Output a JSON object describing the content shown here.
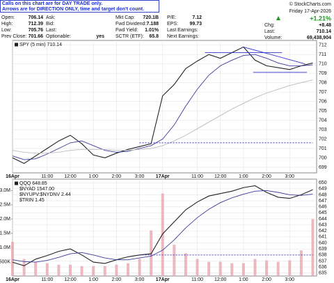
{
  "header": {
    "note": [
      "Calls on this chart are for DAY TRADE only.",
      "Arrows are for DIRECTION ONLY, time and target don't count."
    ],
    "credit": "© StockCharts.com",
    "date": "Friday 17-Apr-2026",
    "change_pct": "+1.21%",
    "columns": [
      [
        {
          "label": "Open:",
          "value": 706.14
        },
        {
          "label": "High:",
          "value": 712.39
        },
        {
          "label": "Low:",
          "value": 705.76
        },
        {
          "label": "Prev Close:",
          "value": 701.66
        }
      ],
      [
        {
          "label": "Ask:"
        },
        {
          "label": "Bid:"
        },
        {
          "label": "Last:"
        },
        {
          "label": "Optionable:",
          "value": "yes"
        }
      ],
      [
        {
          "label": "Mkt Cap:",
          "value": "720.1B"
        },
        {
          "label": "Fwd Dividend:",
          "value": 7.188
        },
        {
          "label": "Fwd Yield:",
          "value": "1.01%"
        },
        {
          "label": "SCTR (ETF):",
          "value": 65.8
        }
      ],
      [
        {
          "label": "P/E:",
          "value": 7.12
        },
        {
          "label": "EPS:",
          "value": 99.73
        },
        {
          "label": "Last Earnings:"
        },
        {
          "label": "Next Earnings:"
        }
      ],
      [
        {
          "label": "Chg:",
          "value": "+8.48"
        },
        {
          "label": "Last:",
          "value": 710.14
        },
        {
          "label": "Volume:",
          "value": "69,438,904"
        }
      ]
    ]
  },
  "chart_data": [
    {
      "type": "line",
      "x": [
        0,
        6,
        12,
        18,
        24,
        30,
        36,
        42,
        48,
        54,
        60,
        66,
        72,
        78,
        84,
        90,
        96,
        102,
        108,
        114,
        120,
        126,
        132,
        138,
        144,
        150,
        156
      ],
      "xlim": [
        0,
        158
      ],
      "xticks": [
        {
          "value": 0,
          "label": "16Apr"
        },
        {
          "value": 18,
          "label": "11:00"
        },
        {
          "value": 30,
          "label": "12:00"
        },
        {
          "value": 42,
          "label": "1:00"
        },
        {
          "value": 54,
          "label": "2:00"
        },
        {
          "value": 66,
          "label": "3:00"
        },
        {
          "value": 78,
          "label": "17Apr"
        },
        {
          "value": 96,
          "label": "11:00"
        },
        {
          "value": 108,
          "label": "12:00"
        },
        {
          "value": 120,
          "label": "1:00"
        },
        {
          "value": 132,
          "label": "2:00"
        },
        {
          "value": 144,
          "label": "3:00"
        }
      ],
      "ylim": [
        698.4,
        712.5
      ],
      "yticks": [
        699,
        700,
        701,
        702,
        703,
        704,
        705,
        706,
        707,
        708,
        709,
        710,
        711,
        712
      ],
      "grid": true,
      "series": [
        {
          "name": "SPY (5 min) 710.14",
          "color": "#222222",
          "values": [
            700.0,
            699.4,
            700.2,
            701.0,
            701.8,
            702.4,
            701.5,
            700.3,
            700.0,
            700.5,
            700.9,
            701.2,
            701.5,
            706.6,
            707.8,
            709.5,
            710.3,
            711.0,
            710.6,
            711.2,
            711.8,
            710.4,
            709.8,
            709.6,
            709.4,
            709.8,
            710.1
          ]
        },
        {
          "color": "#3a3a9a",
          "values": [
            700.2,
            699.8,
            699.9,
            700.4,
            701.0,
            701.6,
            701.8,
            701.3,
            700.8,
            700.6,
            700.7,
            701.0,
            701.3,
            702.0,
            703.5,
            705.5,
            707.3,
            708.8,
            709.8,
            710.4,
            710.9,
            711.0,
            710.6,
            710.1,
            709.8,
            709.8,
            709.9
          ]
        },
        {
          "color": "#bbbbbb",
          "values": [
            700.8,
            700.6,
            700.5,
            700.5,
            700.6,
            700.8,
            700.9,
            700.9,
            700.9,
            700.8,
            700.8,
            700.9,
            701.0,
            701.3,
            701.8,
            702.4,
            703.1,
            703.8,
            704.5,
            705.2,
            705.8,
            706.4,
            706.9,
            707.3,
            707.7,
            708.0,
            708.3
          ]
        }
      ],
      "trendlines": [
        {
          "x": [
            66,
            156
          ],
          "y": [
            701.6,
            701.6
          ],
          "color": "#3333cc",
          "dash": true
        },
        {
          "x": [
            100,
            140
          ],
          "y": [
            711.2,
            711.2
          ],
          "color": "#3333cc"
        },
        {
          "x": [
            125,
            153
          ],
          "y": [
            709.1,
            709.1
          ],
          "color": "#3333cc"
        },
        {
          "x": [
            120,
            152
          ],
          "y": [
            711.8,
            710.0
          ],
          "color": "#3333cc"
        }
      ]
    },
    {
      "type": "line",
      "x": [
        0,
        6,
        12,
        18,
        24,
        30,
        36,
        42,
        48,
        54,
        60,
        66,
        72,
        78,
        84,
        90,
        96,
        102,
        108,
        114,
        120,
        126,
        132,
        138,
        144,
        150,
        156
      ],
      "xlim": [
        0,
        158
      ],
      "xticks": [
        {
          "value": 0,
          "label": "16Apr"
        },
        {
          "value": 18,
          "label": "11:00"
        },
        {
          "value": 30,
          "label": "12:00"
        },
        {
          "value": 42,
          "label": "1:00"
        },
        {
          "value": 54,
          "label": "2:00"
        },
        {
          "value": 66,
          "label": "3:00"
        },
        {
          "value": 78,
          "label": "17Apr"
        },
        {
          "value": 96,
          "label": "11:00"
        },
        {
          "value": 108,
          "label": "12:00"
        },
        {
          "value": 120,
          "label": "1:00"
        },
        {
          "value": 132,
          "label": "2:00"
        },
        {
          "value": 144,
          "label": "3:00"
        }
      ],
      "ylim": [
        634.5,
        650.6
      ],
      "yticks": [
        635,
        636,
        637,
        638,
        639,
        640,
        641,
        642,
        643,
        644,
        645,
        646,
        647,
        648,
        649,
        650
      ],
      "y2lim": [
        0,
        3400000
      ],
      "y2ticks": [
        {
          "value": 500000,
          "label": "500K"
        },
        {
          "value": 1000000,
          "label": "1.0M"
        },
        {
          "value": 1500000,
          "label": "1.5M"
        },
        {
          "value": 2000000,
          "label": "2.0M"
        },
        {
          "value": 2500000,
          "label": "2.5M"
        },
        {
          "value": 3000000,
          "label": "3.0M"
        }
      ],
      "grid": true,
      "indicator_labels": [
        "$NYAD 1547.00",
        "$NYUPV:$NYDNV 2.44",
        "$TRIN 1.45"
      ],
      "series": [
        {
          "name": "QQQ 648.85",
          "color": "#222222",
          "values": [
            636.8,
            636.2,
            637.3,
            637.9,
            638.6,
            639.0,
            638.0,
            636.8,
            636.6,
            637.2,
            637.7,
            638.0,
            638.2,
            641.5,
            643.5,
            645.5,
            646.8,
            647.8,
            648.2,
            648.6,
            649.2,
            649.5,
            648.4,
            647.6,
            647.4,
            648.0,
            648.85
          ]
        },
        {
          "color": "#3a3a9a",
          "values": [
            637.2,
            636.9,
            636.8,
            637.1,
            637.6,
            638.2,
            638.4,
            638.0,
            637.5,
            637.2,
            637.2,
            637.5,
            637.8,
            638.8,
            640.5,
            642.5,
            644.2,
            645.6,
            646.7,
            647.5,
            648.1,
            648.6,
            648.7,
            648.4,
            648.0,
            647.9,
            648.1
          ]
        },
        {
          "type": "bar",
          "axis": "y2",
          "color": "#e8a8b0",
          "values": [
            1200000,
            600000,
            500000,
            450000,
            400000,
            400000,
            350000,
            350000,
            350000,
            400000,
            450000,
            600000,
            1600000,
            2900000,
            1100000,
            800000,
            600000,
            500000,
            500000,
            450000,
            450000,
            600000,
            550000,
            500000,
            550000,
            900000,
            2000000
          ]
        }
      ],
      "trendlines": [
        {
          "x": [
            66,
            156
          ],
          "y": [
            638.0,
            638.0
          ],
          "color": "#3333cc",
          "dash": true
        }
      ]
    }
  ]
}
